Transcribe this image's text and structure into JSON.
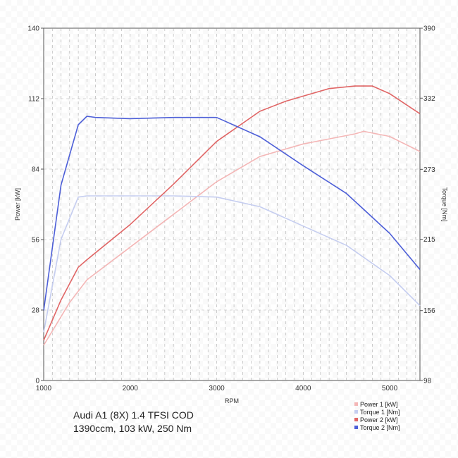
{
  "chart_data": {
    "type": "line",
    "caption": [
      "Audi A1 (8X) 1.4 TFSI COD",
      "1390ccm, 103 kW, 250 Nm"
    ],
    "xlabel": "RPM",
    "ylabel_left": "Power [kW]",
    "ylabel_right": "Torque [Nm]",
    "xlim": [
      1000,
      5350
    ],
    "ylim_left": [
      0,
      140
    ],
    "ylim_right": [
      98,
      390
    ],
    "x_ticks": [
      1000,
      2000,
      3000,
      4000,
      5000
    ],
    "y_ticks_left": [
      0,
      28,
      56,
      84,
      112,
      140
    ],
    "y_ticks_right": [
      98,
      156,
      215,
      273,
      332,
      390
    ],
    "grid": true,
    "legend_position": "bottom-right",
    "series": [
      {
        "name": "Power 1 [kW]",
        "axis": "left",
        "color": "#f4b6b6",
        "x": [
          1000,
          1300,
          1500,
          2000,
          2500,
          3000,
          3500,
          4000,
          4300,
          4600,
          4700,
          5000,
          5350
        ],
        "y": [
          14,
          31,
          40,
          53,
          66,
          79,
          89,
          94,
          96,
          98,
          99,
          97,
          91
        ]
      },
      {
        "name": "Torque 1 [Nm]",
        "axis": "right",
        "color": "#c5cdf0",
        "x": [
          1000,
          1200,
          1400,
          1500,
          2000,
          2500,
          3000,
          3500,
          4000,
          4500,
          5000,
          5350
        ],
        "y": [
          138,
          215,
          250,
          251,
          251,
          251,
          250,
          242,
          226,
          210,
          185,
          160
        ]
      },
      {
        "name": "Power 2 [kW]",
        "axis": "left",
        "color": "#e06565",
        "x": [
          1000,
          1200,
          1400,
          1500,
          2000,
          2500,
          3000,
          3500,
          3800,
          4000,
          4300,
          4600,
          4800,
          5000,
          5350
        ],
        "y": [
          16,
          32,
          45,
          48,
          62,
          78,
          95,
          107,
          111,
          113,
          116,
          117,
          117,
          114,
          106
        ]
      },
      {
        "name": "Torque 2 [Nm]",
        "axis": "right",
        "color": "#4d5fd8",
        "x": [
          1000,
          1200,
          1400,
          1500,
          1600,
          2000,
          2500,
          3000,
          3500,
          4000,
          4500,
          5000,
          5350
        ],
        "y": [
          156,
          260,
          310,
          317,
          316,
          315,
          316,
          316,
          300,
          276,
          253,
          220,
          190
        ]
      }
    ]
  }
}
